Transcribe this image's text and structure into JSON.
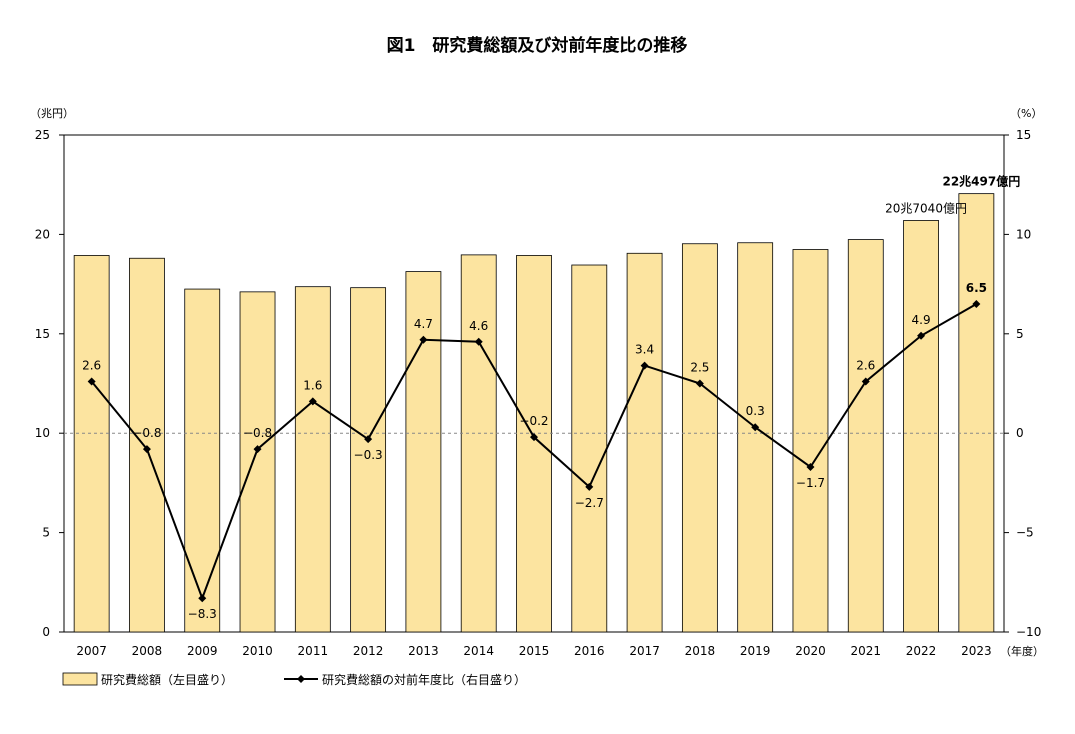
{
  "chart_data": {
    "type": "bar+line",
    "title": "図1　研究費総額及び対前年度比の推移",
    "left_unit": "（兆円）",
    "right_unit": "（%）",
    "x_unit": "（年度）",
    "categories": [
      "2007",
      "2008",
      "2009",
      "2010",
      "2011",
      "2012",
      "2013",
      "2014",
      "2015",
      "2016",
      "2017",
      "2018",
      "2019",
      "2020",
      "2021",
      "2022",
      "2023"
    ],
    "left_axis": {
      "min": 0,
      "max": 25,
      "ticks": [
        0,
        5,
        10,
        15,
        20,
        25
      ]
    },
    "right_axis": {
      "min": -10,
      "max": 15,
      "ticks": [
        -10,
        -5,
        0,
        5,
        10,
        15
      ]
    },
    "grid": false,
    "reference_line": {
      "axis": "right",
      "value": 0,
      "style": "dashed"
    },
    "legend_position": "bottom-left",
    "series": [
      {
        "name": "研究費総額（左目盛り）",
        "type": "bar",
        "axis": "left",
        "color": "#fce4a0",
        "border": "#000000",
        "values": [
          18.94,
          18.8,
          17.25,
          17.11,
          17.37,
          17.32,
          18.13,
          18.97,
          18.94,
          18.46,
          19.05,
          19.53,
          19.58,
          19.24,
          19.74,
          20.7,
          22.05
        ]
      },
      {
        "name": "研究費総額の対前年度比（右目盛り）",
        "type": "line",
        "axis": "right",
        "color": "#000000",
        "marker": "diamond",
        "values": [
          2.6,
          -0.8,
          -8.3,
          -0.8,
          1.6,
          -0.3,
          4.7,
          4.6,
          -0.2,
          -2.7,
          3.4,
          2.5,
          0.3,
          -1.7,
          2.6,
          4.9,
          6.5
        ],
        "labels": [
          "2.6",
          "−0.8",
          "−8.3",
          "−0.8",
          "1.6",
          "−0.3",
          "4.7",
          "4.6",
          "−0.2",
          "−2.7",
          "3.4",
          "2.5",
          "0.3",
          "−1.7",
          "2.6",
          "4.9",
          "6.5"
        ]
      }
    ],
    "annotations": [
      {
        "category": "2022",
        "text": "20兆7040億円",
        "bold": false
      },
      {
        "category": "2023",
        "text": "22兆497億円",
        "bold": true
      }
    ]
  }
}
